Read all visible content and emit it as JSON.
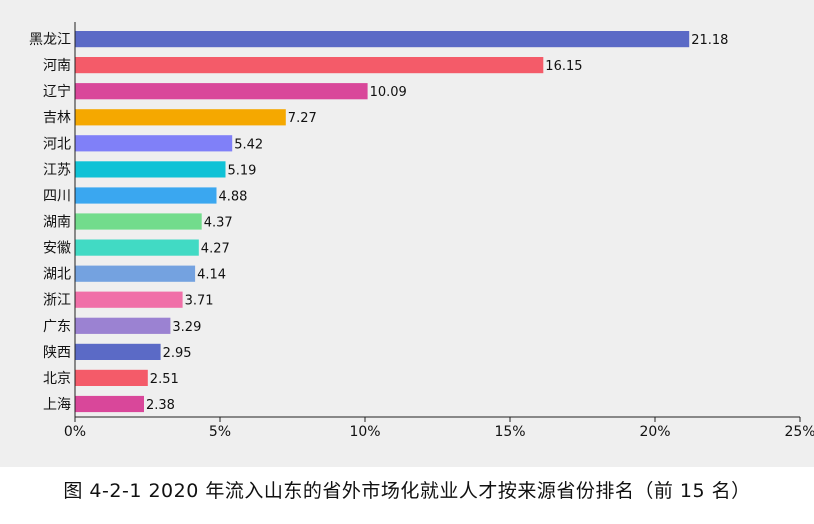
{
  "caption": "图 4-2-1 2020 年流入山东的省外市场化就业人才按来源省份排名（前 15 名）",
  "chart_data": {
    "type": "bar",
    "orientation": "horizontal",
    "categories": [
      "黑龙江",
      "河南",
      "辽宁",
      "吉林",
      "河北",
      "江苏",
      "四川",
      "湖南",
      "安徽",
      "湖北",
      "浙江",
      "广东",
      "陕西",
      "北京",
      "上海"
    ],
    "values": [
      21.18,
      16.15,
      10.09,
      7.27,
      5.42,
      5.19,
      4.88,
      4.37,
      4.27,
      4.14,
      3.71,
      3.29,
      2.95,
      2.51,
      2.38
    ],
    "value_labels": [
      "21.18",
      "16.15",
      "10.09",
      "7.27",
      "5.42",
      "5.19",
      "4.88",
      "4.37",
      "4.27",
      "4.14",
      "3.71",
      "3.29",
      "2.95",
      "2.51",
      "2.38"
    ],
    "colors": [
      "#5b6ac6",
      "#f45b69",
      "#d9479a",
      "#f5a800",
      "#8080f8",
      "#0fc2d6",
      "#3aa7f0",
      "#72dc8c",
      "#41dac4",
      "#74a2e0",
      "#f06fa8",
      "#9b82d2",
      "#5b6ac6",
      "#f45b69",
      "#d9479a"
    ],
    "xlim": [
      0,
      25
    ],
    "xticks": [
      0,
      5,
      10,
      15,
      20,
      25
    ],
    "xtick_labels": [
      "0%",
      "5%",
      "10%",
      "15%",
      "20%",
      "25%"
    ],
    "grid": false,
    "title": "",
    "xlabel": "",
    "ylabel": ""
  }
}
